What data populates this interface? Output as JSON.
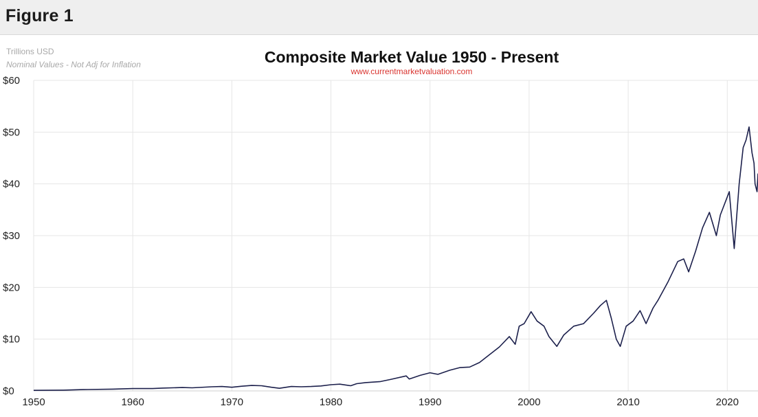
{
  "header": {
    "figure_label": "Figure 1"
  },
  "colors": {
    "line": "#1b1f4b",
    "grid": "#e6e6e6",
    "subtitle": "#d9332e",
    "header_bg": "#efefef"
  },
  "chart_data": {
    "type": "line",
    "title": "Composite Market Value 1950 - Present",
    "subtitle": "www.currentmarketvaluation.com",
    "unit_label": "Trillions USD",
    "note": "Nominal Values - Not Adj for Inflation",
    "xlabel": "",
    "ylabel": "",
    "xlim": [
      1950,
      2023.1
    ],
    "ylim": [
      0,
      60
    ],
    "x_ticks": [
      1950,
      1960,
      1970,
      1980,
      1990,
      2000,
      2010,
      2020
    ],
    "x_tick_labels": [
      "1950",
      "1960",
      "1970",
      "1980",
      "1990",
      "2000",
      "2010",
      "2020"
    ],
    "y_ticks": [
      0,
      10,
      20,
      30,
      40,
      50,
      60
    ],
    "y_tick_labels": [
      "$0",
      "$10",
      "$20",
      "$30",
      "$40",
      "$50",
      "$60"
    ],
    "grid": true,
    "legend": "none",
    "series": [
      {
        "x": [
          1950,
          1953,
          1955,
          1958,
          1960,
          1962,
          1963,
          1965,
          1966,
          1968,
          1969,
          1970,
          1971,
          1972,
          1973,
          1974,
          1974.8,
          1976,
          1977,
          1978,
          1979,
          1980,
          1980.9,
          1982,
          1982.6,
          1983.5,
          1985,
          1986,
          1987.6,
          1987.9,
          1989,
          1990,
          1990.8,
          1992,
          1993,
          1994,
          1995,
          1996,
          1997,
          1998,
          1998.6,
          1999,
          1999.5,
          2000.2,
          2000.8,
          2001.5,
          2002,
          2002.8,
          2003.5,
          2004.5,
          2005.5,
          2006.5,
          2007.2,
          2007.8,
          2008.3,
          2008.8,
          2009.2,
          2009.8,
          2010.5,
          2011.2,
          2011.8,
          2012.5,
          2013,
          2014,
          2015,
          2015.6,
          2016.1,
          2016.8,
          2017.5,
          2018.2,
          2018.9,
          2019.3,
          2019.9,
          2020.2,
          2020.7,
          2021.2,
          2021.6,
          2021.9,
          2022.2,
          2022.5,
          2022.7,
          2022.8,
          2023,
          2023.1
        ],
        "values": [
          0.1,
          0.15,
          0.25,
          0.35,
          0.45,
          0.45,
          0.55,
          0.65,
          0.6,
          0.8,
          0.85,
          0.7,
          0.9,
          1.05,
          1.0,
          0.7,
          0.5,
          0.85,
          0.8,
          0.85,
          0.95,
          1.2,
          1.3,
          1.0,
          1.4,
          1.6,
          1.8,
          2.2,
          2.9,
          2.3,
          3.0,
          3.5,
          3.2,
          4.0,
          4.5,
          4.6,
          5.5,
          7.0,
          8.5,
          10.5,
          9.0,
          12.5,
          13.0,
          15.3,
          13.5,
          12.5,
          10.5,
          8.6,
          10.8,
          12.5,
          13.0,
          15.0,
          16.5,
          17.5,
          14.0,
          10.0,
          8.6,
          12.5,
          13.5,
          15.5,
          13.0,
          16.0,
          17.5,
          21.0,
          25.0,
          25.5,
          23.0,
          27.0,
          31.5,
          34.5,
          30.0,
          34.0,
          37.0,
          38.5,
          27.5,
          40.0,
          47.0,
          48.5,
          51.0,
          46.0,
          44.0,
          40.0,
          38.5,
          42.0
        ]
      }
    ]
  }
}
